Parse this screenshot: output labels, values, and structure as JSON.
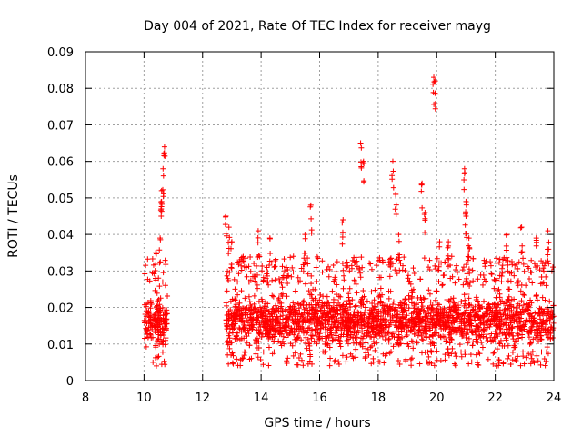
{
  "chart_data": {
    "type": "scatter",
    "title": "Day 004 of 2021, Rate Of TEC Index for receiver mayg",
    "xlabel": "GPS time / hours",
    "ylabel": "ROTI / TECUs",
    "xlim": [
      8,
      24
    ],
    "ylim": [
      0,
      0.09
    ],
    "xticks": [
      8,
      10,
      12,
      14,
      16,
      18,
      20,
      22,
      24
    ],
    "xtick_labels": [
      "8",
      "10",
      "12",
      "14",
      "16",
      "18",
      "20",
      "22",
      "24"
    ],
    "yticks": [
      0,
      0.01,
      0.02,
      0.03,
      0.04,
      0.05,
      0.06,
      0.07,
      0.08,
      0.09
    ],
    "ytick_labels": [
      "0",
      "0.01",
      "0.02",
      "0.03",
      "0.04",
      "0.05",
      "0.06",
      "0.07",
      "0.08",
      "0.09"
    ],
    "grid": true,
    "marker": "+",
    "series": [
      {
        "name": "ROTI",
        "color": "#ff0000",
        "segments": [
          {
            "x_range": [
              10.0,
              10.8
            ],
            "typical": [
              0.007,
              0.024
            ],
            "max": 0.064
          },
          {
            "x_range": [
              12.8,
              24.0
            ],
            "typical": [
              0.006,
              0.026
            ],
            "max": 0.083
          }
        ],
        "peaks": [
          {
            "x": 10.7,
            "y": 0.064
          },
          {
            "x": 10.65,
            "y": 0.058
          },
          {
            "x": 10.6,
            "y": 0.052
          },
          {
            "x": 10.6,
            "y": 0.049
          },
          {
            "x": 10.55,
            "y": 0.039
          },
          {
            "x": 10.4,
            "y": 0.035
          },
          {
            "x": 12.8,
            "y": 0.045
          },
          {
            "x": 12.9,
            "y": 0.042
          },
          {
            "x": 13.0,
            "y": 0.038
          },
          {
            "x": 13.9,
            "y": 0.041
          },
          {
            "x": 14.3,
            "y": 0.039
          },
          {
            "x": 15.5,
            "y": 0.04
          },
          {
            "x": 15.7,
            "y": 0.048
          },
          {
            "x": 16.8,
            "y": 0.044
          },
          {
            "x": 17.4,
            "y": 0.065
          },
          {
            "x": 17.5,
            "y": 0.06
          },
          {
            "x": 18.5,
            "y": 0.06
          },
          {
            "x": 18.6,
            "y": 0.051
          },
          {
            "x": 18.7,
            "y": 0.04
          },
          {
            "x": 19.5,
            "y": 0.054
          },
          {
            "x": 19.6,
            "y": 0.046
          },
          {
            "x": 19.9,
            "y": 0.083
          },
          {
            "x": 19.95,
            "y": 0.082
          },
          {
            "x": 20.1,
            "y": 0.038
          },
          {
            "x": 20.4,
            "y": 0.038
          },
          {
            "x": 20.95,
            "y": 0.058
          },
          {
            "x": 21.0,
            "y": 0.049
          },
          {
            "x": 21.0,
            "y": 0.045
          },
          {
            "x": 21.1,
            "y": 0.039
          },
          {
            "x": 22.4,
            "y": 0.04
          },
          {
            "x": 22.9,
            "y": 0.042
          },
          {
            "x": 23.4,
            "y": 0.039
          },
          {
            "x": 23.8,
            "y": 0.041
          }
        ]
      }
    ]
  }
}
